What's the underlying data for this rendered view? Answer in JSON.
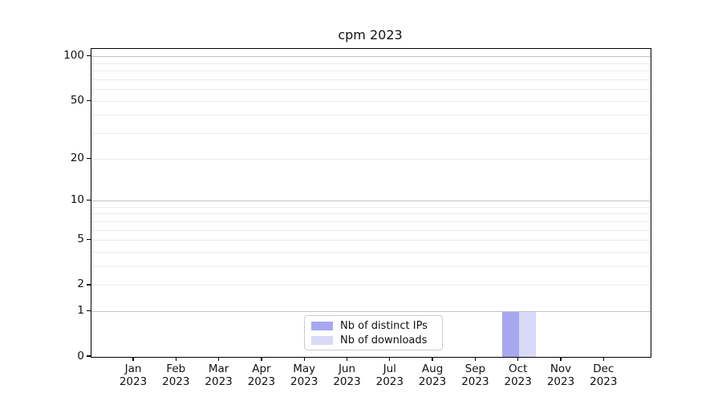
{
  "chart_data": {
    "type": "bar",
    "title": "cpm 2023",
    "x_tick_months": [
      "Jan",
      "Feb",
      "Mar",
      "Apr",
      "May",
      "Jun",
      "Jul",
      "Aug",
      "Sep",
      "Oct",
      "Nov",
      "Dec"
    ],
    "x_tick_year": "2023",
    "categories": [
      "Jan 2023",
      "Feb 2023",
      "Mar 2023",
      "Apr 2023",
      "May 2023",
      "Jun 2023",
      "Jul 2023",
      "Aug 2023",
      "Sep 2023",
      "Oct 2023",
      "Nov 2023",
      "Dec 2023"
    ],
    "y_ticks": [
      0,
      1,
      2,
      5,
      10,
      20,
      50,
      100
    ],
    "ylim": [
      0,
      113
    ],
    "yscale": "log1p",
    "grid": "horizontal major+minor",
    "legend_position": "lower center",
    "series": [
      {
        "name": "Nb of distinct IPs",
        "color": "#a7a7f0",
        "values": [
          0,
          0,
          0,
          0,
          0,
          0,
          0,
          0,
          0,
          1,
          0,
          0
        ]
      },
      {
        "name": "Nb of downloads",
        "color": "#d9d9f8",
        "values": [
          0,
          0,
          0,
          0,
          0,
          0,
          0,
          0,
          0,
          1,
          0,
          0
        ]
      }
    ],
    "colors": {
      "major_grid": "#c2c2c2",
      "minor_grid": "#ebebeb",
      "axis": "#000000",
      "legend_border": "#cccccc",
      "background": "#ffffff"
    }
  }
}
